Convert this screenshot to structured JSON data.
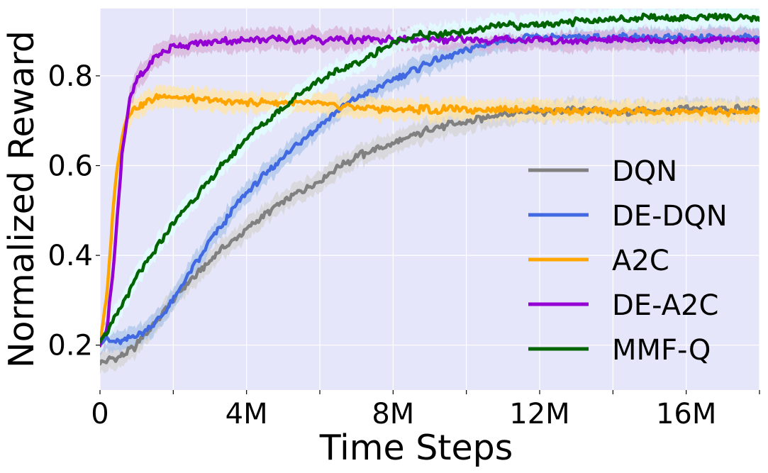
{
  "chart_data": {
    "type": "line",
    "title": "",
    "xlabel": "Time Steps",
    "ylabel": "Normalized Reward",
    "xlim": [
      0,
      18
    ],
    "ylim": [
      0.1,
      0.95
    ],
    "x_unit": "M",
    "xticks": [
      {
        "value": 0,
        "label": "0"
      },
      {
        "value": 4,
        "label": "4M"
      },
      {
        "value": 8,
        "label": "8M"
      },
      {
        "value": 12,
        "label": "12M"
      },
      {
        "value": 16,
        "label": "16M"
      }
    ],
    "x_minor_ticks": [
      2,
      6,
      10,
      14,
      18
    ],
    "yticks": [
      {
        "value": 0.2,
        "label": "0.2"
      },
      {
        "value": 0.4,
        "label": "0.4"
      },
      {
        "value": 0.6,
        "label": "0.6"
      },
      {
        "value": 0.8,
        "label": "0.8"
      }
    ],
    "grid": true,
    "background_color": "#E6E6FA",
    "legend_position": "lower right",
    "shaded_band_around_each_line": true,
    "series": [
      {
        "name": "DQN",
        "color": "#808080",
        "band_color": "#D3D3D3",
        "x": [
          0,
          0.5,
          1,
          1.5,
          2,
          3,
          4,
          5,
          6,
          7,
          8,
          9,
          10,
          11,
          12,
          13,
          14,
          15,
          16,
          17,
          18
        ],
        "y": [
          0.165,
          0.17,
          0.2,
          0.25,
          0.3,
          0.39,
          0.46,
          0.52,
          0.57,
          0.62,
          0.65,
          0.68,
          0.7,
          0.715,
          0.72,
          0.725,
          0.72,
          0.72,
          0.725,
          0.725,
          0.725
        ]
      },
      {
        "name": "DE-DQN",
        "color": "#4169E1",
        "band_color": "#AEC6E8",
        "x": [
          0,
          0.5,
          1,
          1.5,
          2,
          3,
          4,
          5,
          6,
          7,
          8,
          9,
          10,
          11,
          12,
          13,
          14,
          15,
          16,
          17,
          18
        ],
        "y": [
          0.21,
          0.21,
          0.22,
          0.25,
          0.3,
          0.43,
          0.54,
          0.62,
          0.69,
          0.75,
          0.79,
          0.83,
          0.86,
          0.88,
          0.885,
          0.885,
          0.885,
          0.885,
          0.885,
          0.885,
          0.885
        ]
      },
      {
        "name": "A2C",
        "color": "#FFA500",
        "band_color": "#FFE4A0",
        "x": [
          0,
          0.2,
          0.4,
          0.6,
          0.8,
          1,
          1.5,
          2,
          3,
          4,
          5,
          6,
          7,
          8,
          9,
          10,
          11,
          12,
          13,
          14,
          15,
          16,
          17,
          18
        ],
        "y": [
          0.2,
          0.32,
          0.55,
          0.67,
          0.72,
          0.73,
          0.75,
          0.755,
          0.745,
          0.74,
          0.74,
          0.735,
          0.73,
          0.725,
          0.725,
          0.725,
          0.725,
          0.725,
          0.72,
          0.72,
          0.72,
          0.72,
          0.72,
          0.72
        ]
      },
      {
        "name": "DE-A2C",
        "color": "#9400D3",
        "band_color": "#D8B0D8",
        "x": [
          0,
          0.2,
          0.4,
          0.6,
          0.8,
          1,
          1.5,
          2,
          3,
          4,
          5,
          6,
          7,
          8,
          9,
          10,
          11,
          12,
          13,
          14,
          15,
          16,
          17,
          18
        ],
        "y": [
          0.2,
          0.24,
          0.4,
          0.63,
          0.74,
          0.79,
          0.84,
          0.865,
          0.875,
          0.88,
          0.88,
          0.88,
          0.88,
          0.88,
          0.88,
          0.88,
          0.88,
          0.88,
          0.88,
          0.88,
          0.88,
          0.88,
          0.88,
          0.88
        ]
      },
      {
        "name": "MMF-Q",
        "color": "#006400",
        "band_color": "#E0FFFF",
        "x": [
          0,
          0.5,
          1,
          1.5,
          2,
          3,
          4,
          5,
          6,
          7,
          8,
          8.5,
          9,
          10,
          11,
          12,
          13,
          14,
          15,
          16,
          17,
          18
        ],
        "y": [
          0.21,
          0.27,
          0.35,
          0.41,
          0.47,
          0.57,
          0.66,
          0.73,
          0.79,
          0.83,
          0.87,
          0.89,
          0.89,
          0.9,
          0.91,
          0.915,
          0.92,
          0.925,
          0.93,
          0.93,
          0.93,
          0.93
        ]
      }
    ]
  }
}
